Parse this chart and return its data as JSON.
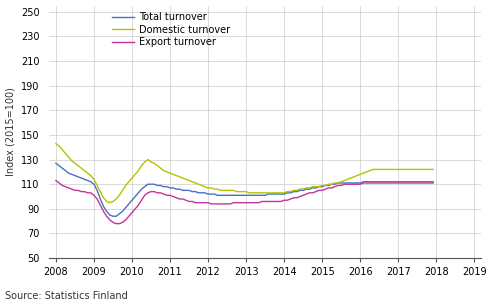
{
  "title": "",
  "ylabel": "Index (2015=100)",
  "source_text": "Source: Statistics Finland",
  "ylim": [
    50,
    255
  ],
  "yticks": [
    50,
    70,
    90,
    110,
    130,
    150,
    170,
    190,
    210,
    230,
    250
  ],
  "xmin": 2007.83,
  "xmax": 2019.17,
  "xticks": [
    2008,
    2009,
    2010,
    2011,
    2012,
    2013,
    2014,
    2015,
    2016,
    2017,
    2018,
    2019
  ],
  "grid_color": "#cccccc",
  "bg_color": "#ffffff",
  "legend_labels": [
    "Total turnover",
    "Domestic turnover",
    "Export turnover"
  ],
  "line_colors": [
    "#4472c4",
    "#b5c200",
    "#c0359a"
  ],
  "line_width": 1.0,
  "total_turnover": [
    127,
    125,
    123,
    121,
    119,
    118,
    117,
    116,
    115,
    114,
    113,
    112,
    110,
    105,
    98,
    92,
    88,
    85,
    84,
    84,
    86,
    88,
    91,
    94,
    97,
    100,
    103,
    106,
    108,
    110,
    110,
    110,
    109,
    109,
    108,
    108,
    107,
    107,
    106,
    106,
    105,
    105,
    105,
    104,
    104,
    103,
    103,
    103,
    102,
    102,
    102,
    101,
    101,
    101,
    101,
    101,
    101,
    101,
    101,
    101,
    101,
    101,
    101,
    101,
    101,
    101,
    101,
    102,
    102,
    102,
    102,
    102,
    102,
    103,
    103,
    104,
    104,
    105,
    105,
    106,
    106,
    107,
    107,
    108,
    108,
    109,
    109,
    110,
    110,
    111,
    111,
    111,
    111,
    111,
    111,
    111,
    111,
    112,
    112,
    112,
    112,
    112,
    112,
    112,
    112,
    112,
    112,
    112,
    112,
    112,
    112,
    112,
    112,
    112,
    112,
    112,
    112,
    112,
    112,
    112
  ],
  "domestic_turnover": [
    143,
    141,
    138,
    135,
    132,
    129,
    127,
    125,
    123,
    121,
    119,
    117,
    114,
    109,
    104,
    99,
    96,
    95,
    96,
    98,
    101,
    105,
    109,
    112,
    115,
    118,
    121,
    125,
    128,
    130,
    128,
    127,
    125,
    123,
    121,
    120,
    119,
    118,
    117,
    116,
    115,
    114,
    113,
    112,
    111,
    110,
    109,
    108,
    107,
    107,
    106,
    106,
    105,
    105,
    105,
    105,
    105,
    104,
    104,
    104,
    104,
    103,
    103,
    103,
    103,
    103,
    103,
    103,
    103,
    103,
    103,
    103,
    103,
    104,
    104,
    105,
    105,
    106,
    106,
    107,
    107,
    108,
    108,
    108,
    109,
    109,
    110,
    110,
    111,
    111,
    112,
    113,
    114,
    115,
    116,
    117,
    118,
    119,
    120,
    121,
    122,
    122,
    122,
    122,
    122,
    122,
    122,
    122,
    122,
    122,
    122,
    122,
    122,
    122,
    122,
    122,
    122,
    122,
    122,
    122
  ],
  "export_turnover": [
    113,
    111,
    109,
    108,
    107,
    106,
    105,
    105,
    104,
    104,
    103,
    103,
    101,
    98,
    93,
    88,
    84,
    81,
    79,
    78,
    78,
    79,
    81,
    84,
    87,
    90,
    93,
    97,
    101,
    103,
    104,
    104,
    103,
    103,
    102,
    101,
    101,
    100,
    99,
    98,
    98,
    97,
    96,
    96,
    95,
    95,
    95,
    95,
    95,
    94,
    94,
    94,
    94,
    94,
    94,
    94,
    95,
    95,
    95,
    95,
    95,
    95,
    95,
    95,
    95,
    96,
    96,
    96,
    96,
    96,
    96,
    96,
    97,
    97,
    98,
    99,
    99,
    100,
    101,
    102,
    103,
    103,
    104,
    105,
    105,
    106,
    107,
    107,
    108,
    109,
    109,
    110,
    110,
    110,
    110,
    110,
    110,
    111,
    111,
    111,
    111,
    111,
    111,
    111,
    111,
    111,
    111,
    111,
    111,
    111,
    111,
    111,
    111,
    111,
    111,
    111,
    111,
    111,
    111,
    111
  ]
}
